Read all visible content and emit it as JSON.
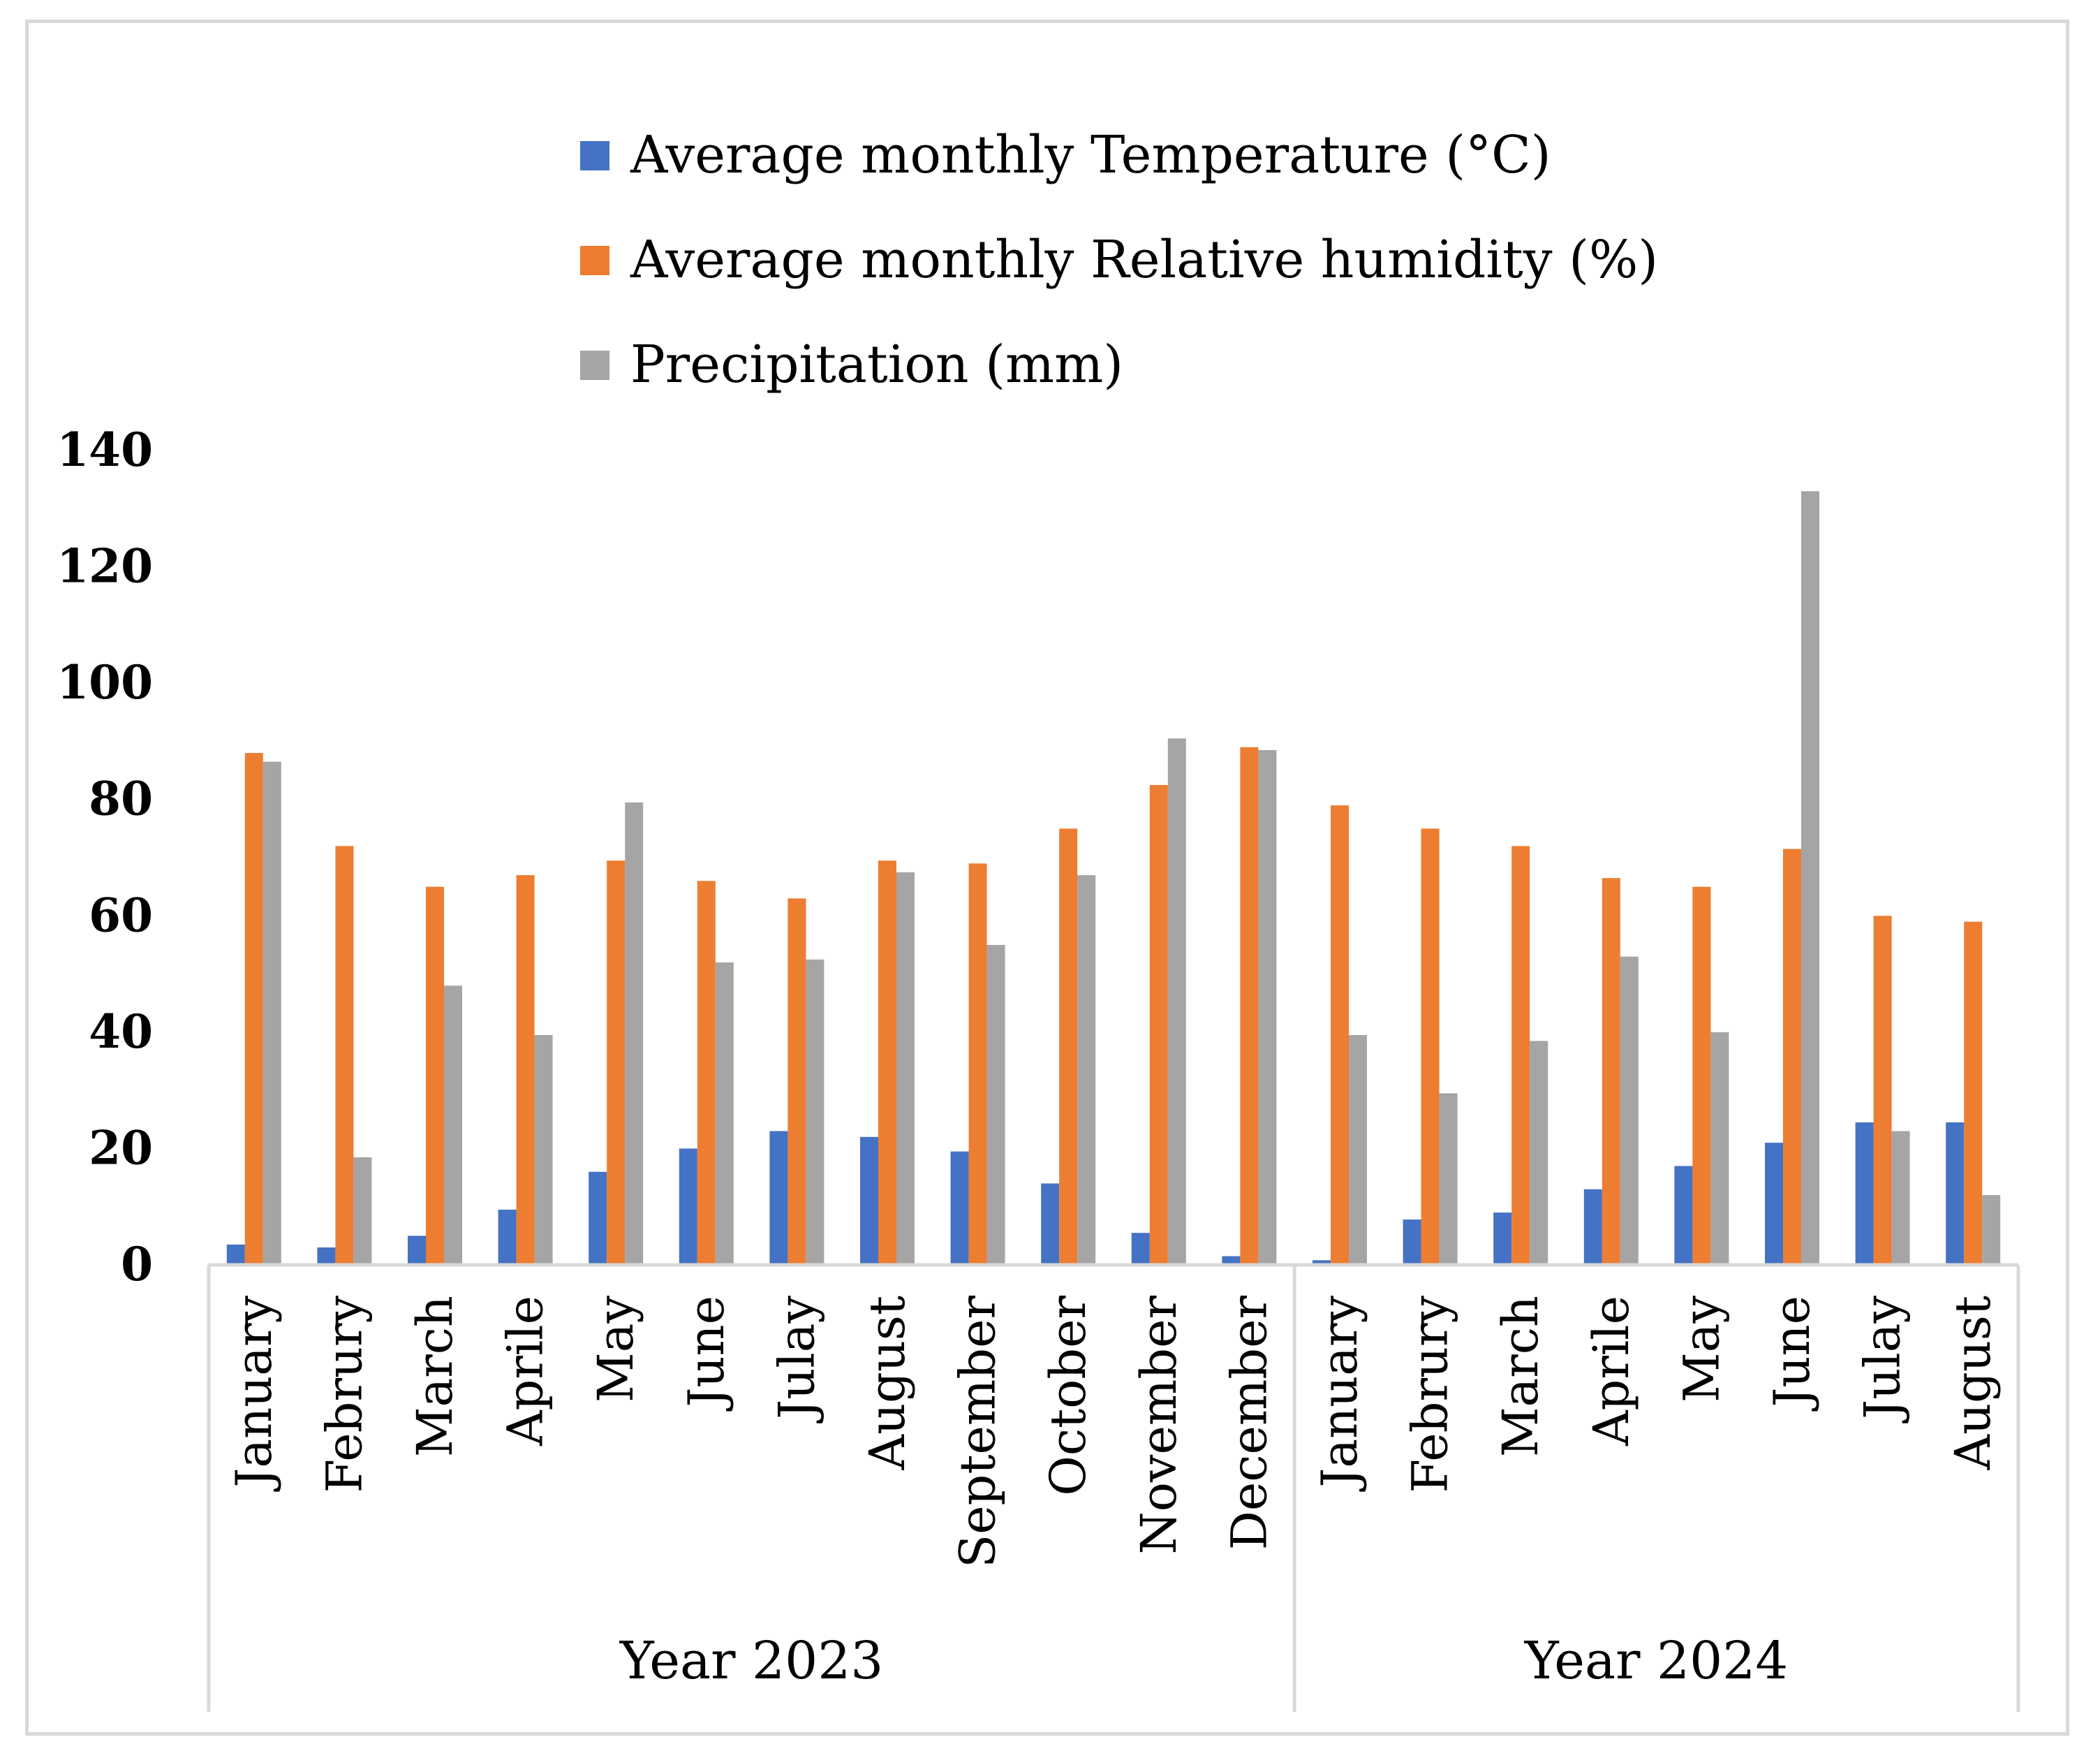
{
  "chart_data": {
    "type": "bar",
    "title": "",
    "xlabel": "",
    "ylabel": "",
    "ylim": [
      0,
      140
    ],
    "yticks": [
      0,
      20,
      40,
      60,
      80,
      100,
      120,
      140
    ],
    "grid": false,
    "legend_position": "top",
    "categories": [
      "January",
      "Februry",
      "March",
      "Aprile",
      "May",
      "June",
      "Julay",
      "August",
      "September",
      "October",
      "November",
      "December",
      "January",
      "Februry",
      "March",
      "Aprile",
      "May",
      "June",
      "Julay",
      "August"
    ],
    "groups": [
      {
        "label": "Year 2023",
        "start": 0,
        "count": 12
      },
      {
        "label": "Year 2024",
        "start": 12,
        "count": 8
      }
    ],
    "series": [
      {
        "name": "Average monthly Temperature (°C)",
        "color": "#4472c4",
        "values": [
          3.5,
          3,
          5,
          9.5,
          16,
          20,
          23,
          22,
          19.5,
          14,
          5.5,
          1.5,
          0.8,
          7.8,
          9,
          13,
          17,
          21,
          24.5,
          24.5
        ]
      },
      {
        "name": "Average monthly Relative humidity (%)",
        "color": "#ed7d31",
        "values": [
          88,
          72,
          65,
          67,
          69.5,
          66,
          63,
          69.5,
          69,
          75,
          82.5,
          89,
          79,
          75,
          72,
          66.5,
          65,
          71.5,
          60,
          59
        ]
      },
      {
        "name": "Precipitation (mm)",
        "color": "#a5a5a5",
        "values": [
          86.5,
          18.5,
          48,
          39.5,
          79.5,
          52,
          52.5,
          67.5,
          55,
          67,
          90.5,
          88.5,
          39.5,
          29.5,
          38.5,
          53,
          40,
          133,
          23,
          12
        ]
      }
    ]
  }
}
